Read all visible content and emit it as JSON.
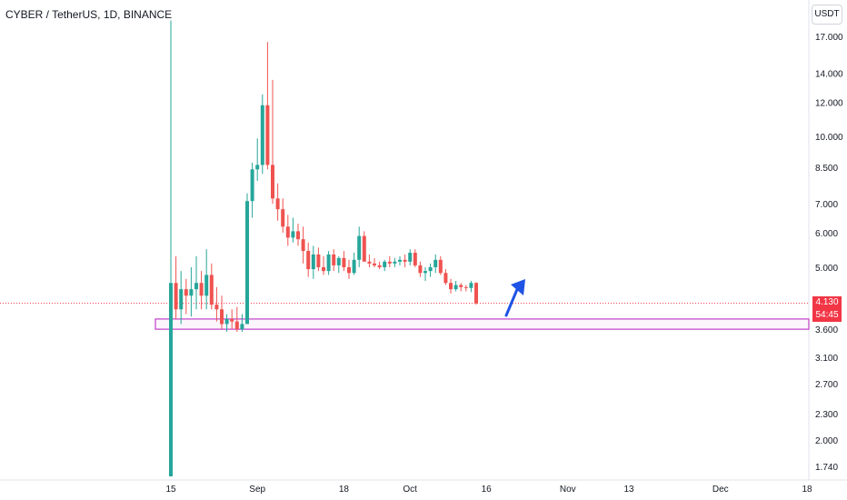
{
  "header": {
    "title": "CYBER / TetherUS, 1D, BINANCE",
    "currency_label": "USDT"
  },
  "price_tag": {
    "price": "4.130",
    "countdown": "54:45"
  },
  "colors": {
    "up": "#26a69a",
    "down": "#ef5350",
    "zone": "#c040c8",
    "price_line": "#f23645",
    "arrow": "#1e53e5",
    "axis_text": "#131722"
  },
  "chart_data": {
    "type": "candlestick",
    "title": "CYBER / TetherUS, 1D, BINANCE",
    "y_scale": "log",
    "ylim": [
      1.65,
      19.0
    ],
    "y_ticks": [
      "17.000",
      "14.000",
      "12.000",
      "10.000",
      "8.500",
      "7.000",
      "6.000",
      "5.000",
      "3.600",
      "3.100",
      "2.700",
      "2.300",
      "2.000",
      "1.740"
    ],
    "x_ticks": [
      "15",
      "Sep",
      "18",
      "Oct",
      "16",
      "Nov",
      "13",
      "Dec",
      "18"
    ],
    "start_date": "2023-08-15",
    "candles": [
      [
        1.65,
        18.5,
        1.65,
        4.6
      ],
      [
        4.6,
        5.3,
        3.8,
        4.0
      ],
      [
        4.0,
        4.9,
        3.7,
        4.45
      ],
      [
        4.45,
        4.7,
        3.9,
        4.3
      ],
      [
        4.3,
        5.0,
        3.85,
        4.45
      ],
      [
        4.45,
        5.3,
        4.0,
        4.6
      ],
      [
        4.6,
        4.9,
        4.0,
        4.3
      ],
      [
        4.3,
        5.5,
        4.0,
        4.8
      ],
      [
        4.8,
        5.1,
        4.0,
        4.1
      ],
      [
        4.1,
        4.5,
        3.75,
        4.0
      ],
      [
        4.0,
        4.3,
        3.6,
        3.7
      ],
      [
        3.7,
        3.9,
        3.55,
        3.8
      ],
      [
        3.8,
        4.0,
        3.6,
        3.75
      ],
      [
        3.75,
        4.05,
        3.55,
        3.6
      ],
      [
        3.6,
        3.9,
        3.55,
        3.7
      ],
      [
        3.7,
        7.4,
        3.7,
        7.1
      ],
      [
        7.1,
        8.7,
        6.5,
        8.4
      ],
      [
        8.4,
        9.9,
        7.9,
        8.6
      ],
      [
        8.6,
        12.5,
        8.2,
        11.8
      ],
      [
        11.8,
        16.5,
        8.4,
        8.6
      ],
      [
        8.6,
        13.5,
        7.0,
        7.2
      ],
      [
        7.2,
        7.8,
        6.4,
        6.8
      ],
      [
        6.8,
        7.2,
        6.0,
        6.2
      ],
      [
        6.2,
        6.6,
        5.6,
        5.85
      ],
      [
        5.85,
        6.5,
        5.7,
        6.05
      ],
      [
        6.05,
        6.3,
        5.6,
        5.8
      ],
      [
        5.8,
        6.2,
        5.1,
        5.45
      ],
      [
        5.45,
        5.7,
        4.75,
        4.95
      ],
      [
        4.95,
        5.6,
        4.7,
        5.35
      ],
      [
        5.35,
        5.55,
        4.9,
        5.0
      ],
      [
        5.0,
        5.3,
        4.8,
        4.9
      ],
      [
        4.9,
        5.45,
        4.8,
        5.35
      ],
      [
        5.35,
        5.5,
        4.9,
        5.05
      ],
      [
        5.05,
        5.3,
        4.85,
        5.25
      ],
      [
        5.25,
        5.45,
        4.9,
        5.0
      ],
      [
        5.0,
        5.2,
        4.7,
        4.85
      ],
      [
        4.85,
        5.4,
        4.8,
        5.2
      ],
      [
        5.2,
        6.2,
        5.0,
        5.9
      ],
      [
        5.9,
        6.05,
        5.2,
        5.15
      ],
      [
        5.15,
        5.35,
        5.0,
        5.1
      ],
      [
        5.1,
        5.25,
        5.0,
        5.05
      ],
      [
        5.05,
        5.15,
        4.95,
        5.0
      ],
      [
        5.0,
        5.2,
        4.9,
        5.15
      ],
      [
        5.15,
        5.3,
        5.0,
        5.1
      ],
      [
        5.1,
        5.25,
        5.0,
        5.15
      ],
      [
        5.15,
        5.3,
        5.05,
        5.2
      ],
      [
        5.2,
        5.35,
        5.0,
        5.15
      ],
      [
        5.15,
        5.5,
        5.05,
        5.4
      ],
      [
        5.4,
        5.5,
        5.0,
        5.05
      ],
      [
        5.05,
        5.15,
        4.75,
        4.85
      ],
      [
        4.85,
        5.0,
        4.65,
        4.9
      ],
      [
        4.9,
        5.1,
        4.75,
        5.0
      ],
      [
        5.0,
        5.35,
        4.85,
        5.2
      ],
      [
        5.2,
        5.3,
        4.8,
        4.85
      ],
      [
        4.85,
        4.95,
        4.55,
        4.6
      ],
      [
        4.6,
        4.7,
        4.35,
        4.45
      ],
      [
        4.45,
        4.65,
        4.4,
        4.55
      ],
      [
        4.55,
        4.6,
        4.4,
        4.5
      ],
      [
        4.5,
        4.55,
        4.4,
        4.48
      ],
      [
        4.48,
        4.65,
        4.38,
        4.6
      ],
      [
        4.6,
        4.62,
        4.1,
        4.13
      ]
    ],
    "support_zone": [
      3.6,
      3.8
    ],
    "last_price": 4.13,
    "annotation": "arrow-up"
  }
}
